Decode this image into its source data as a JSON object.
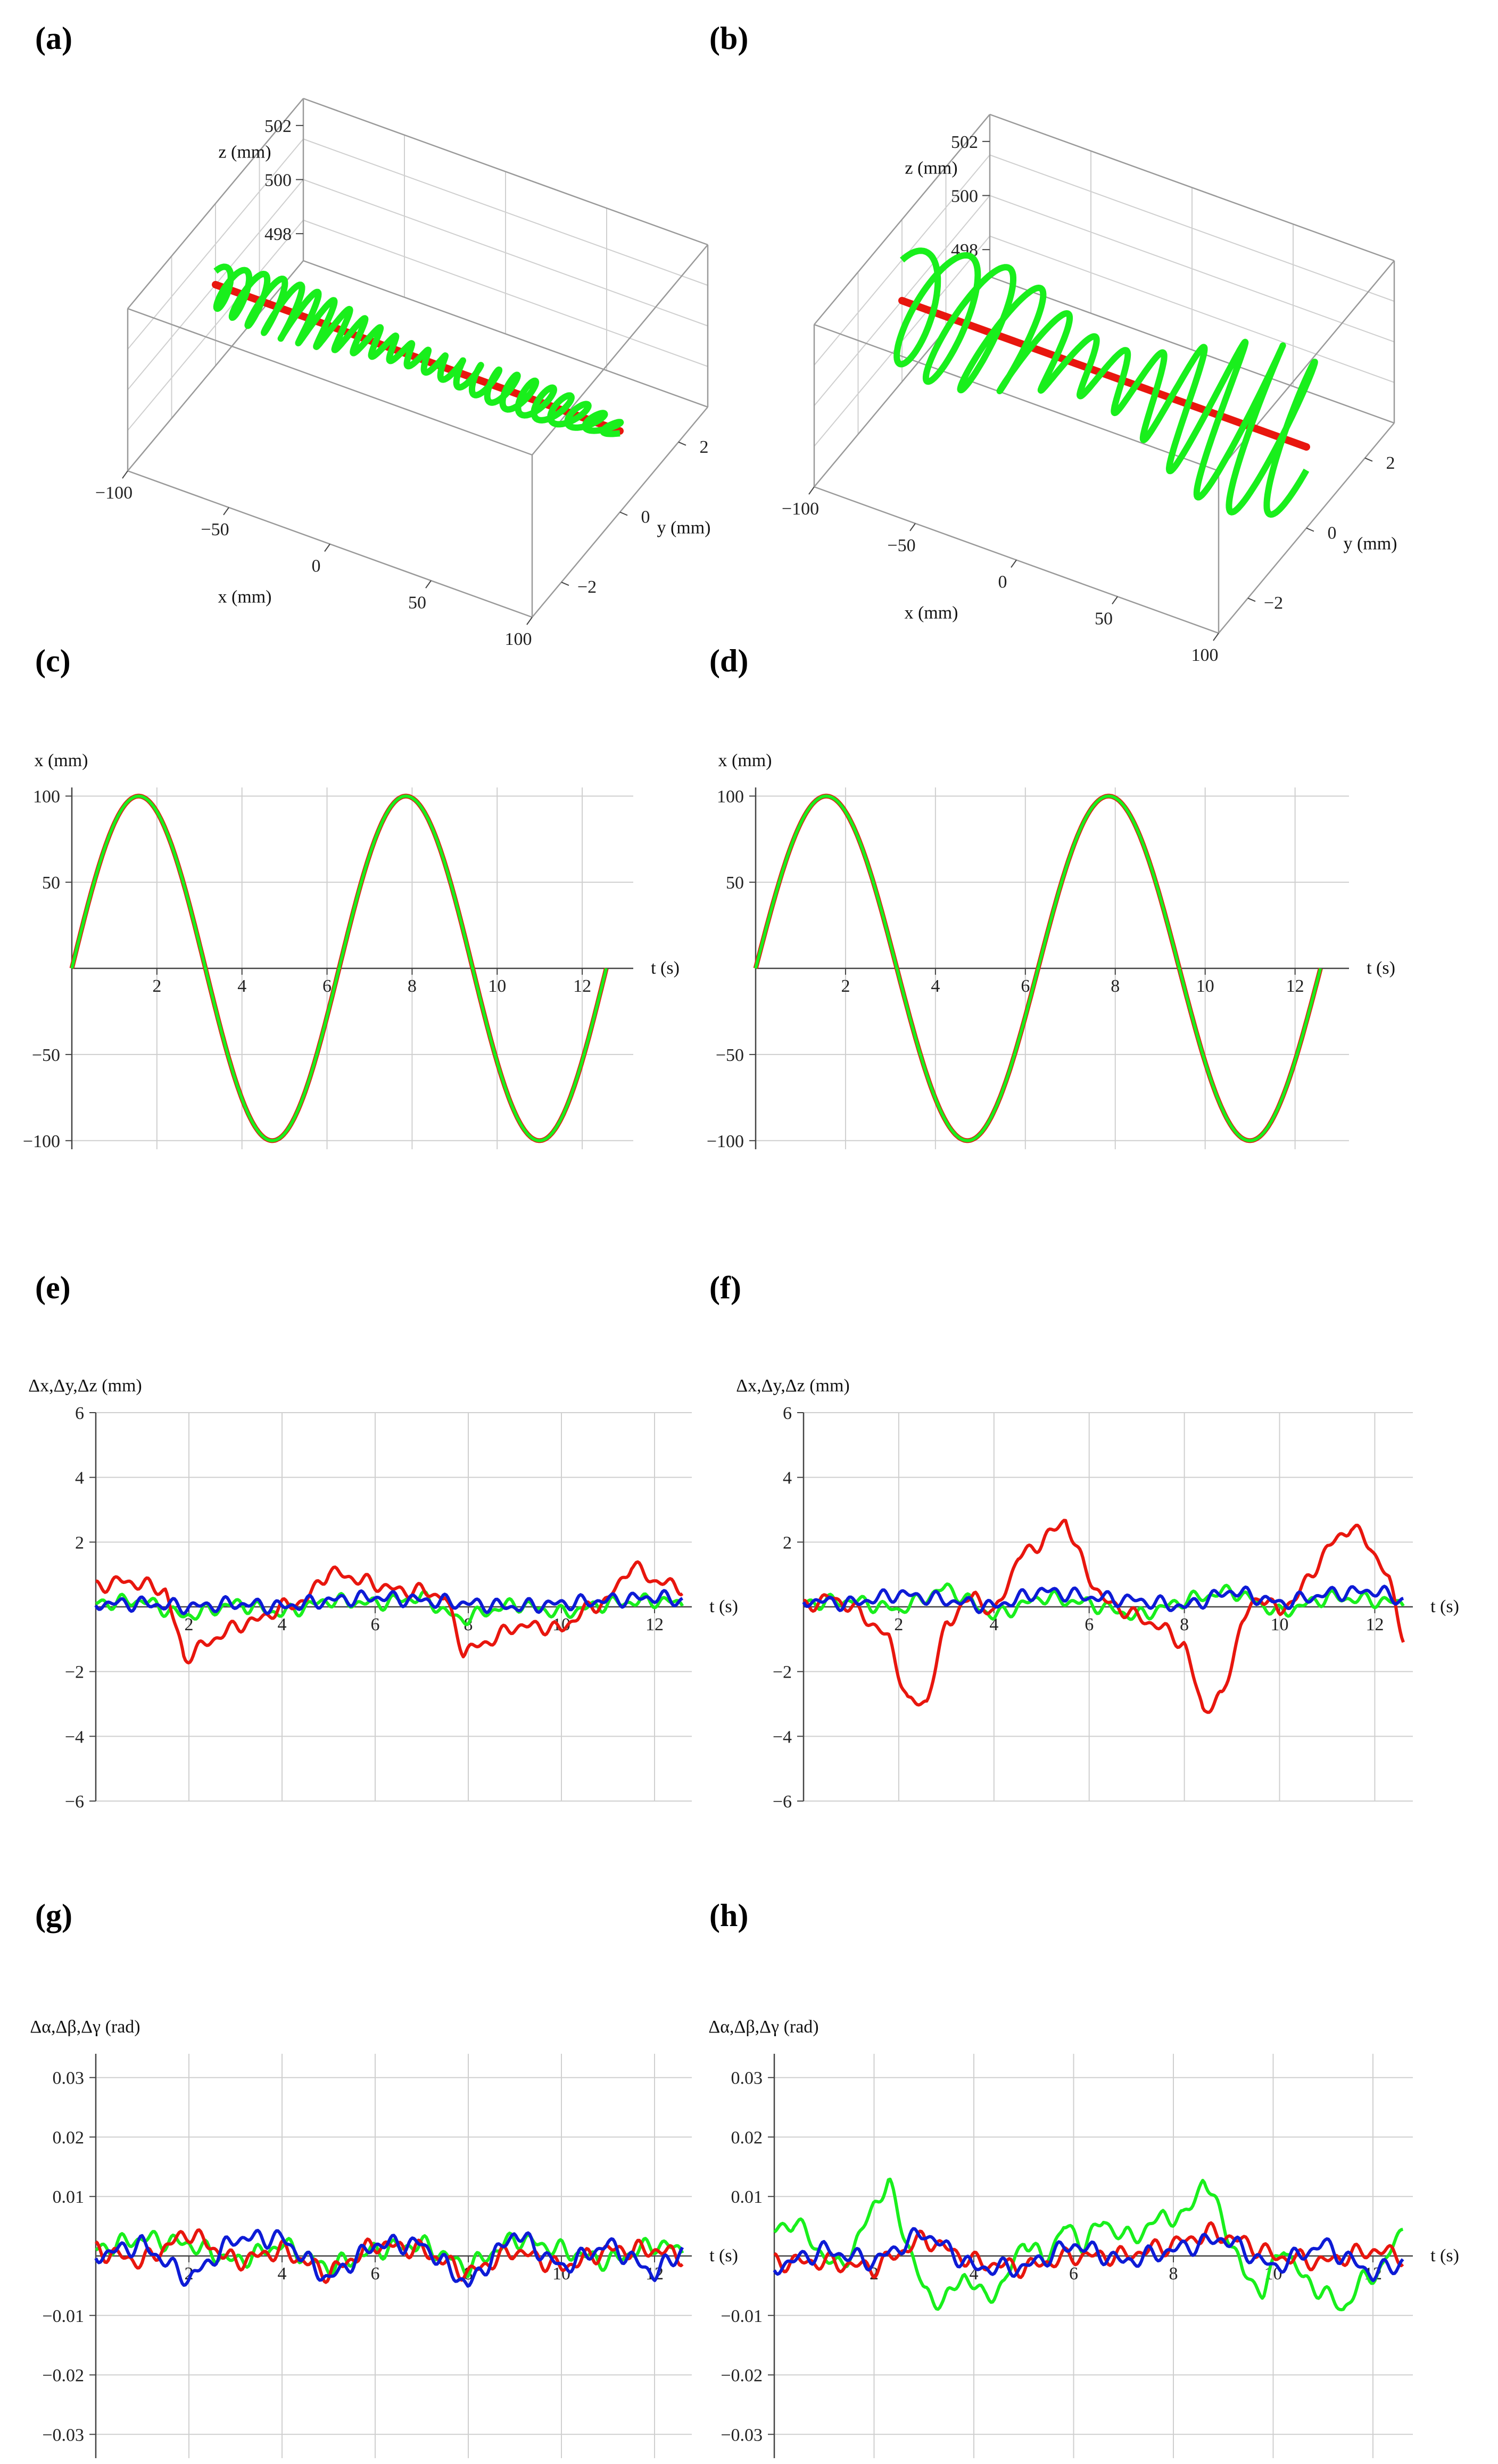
{
  "panels": [
    "(a)",
    "(b)",
    "(c)",
    "(d)",
    "(e)",
    "(f)",
    "(g)",
    "(h)"
  ],
  "colors": {
    "reference": "#e8160e",
    "actual": "#19ef1c",
    "third": "#0d1bd6",
    "grid": "#cfcfcf"
  },
  "chart_data": [
    {
      "id": "a",
      "type": "scatter",
      "mode": "3d",
      "xlabel": "x (mm)",
      "ylabel": "y (mm)",
      "zlabel": "z (mm)",
      "xticks": [
        -100,
        -50,
        0,
        50,
        100
      ],
      "yticks": [
        -2,
        0,
        2
      ],
      "zticks": [
        498,
        500,
        502
      ],
      "xlim": [
        -100,
        100
      ],
      "ylim": [
        -3,
        3
      ],
      "zlim": [
        497,
        503
      ],
      "series": [
        {
          "role": "reference",
          "color": "#e8160e",
          "points": [
            [
              -100,
              0,
              500
            ],
            [
              100,
              0,
              500
            ]
          ]
        },
        {
          "role": "actual",
          "color": "#19ef1c",
          "x_range": [
            -100,
            100
          ],
          "y_amplitude": 0.5,
          "z_amplitude": 0.5,
          "oscillations": 24
        }
      ]
    },
    {
      "id": "b",
      "type": "scatter",
      "mode": "3d",
      "xlabel": "x (mm)",
      "ylabel": "y (mm)",
      "zlabel": "z (mm)",
      "xticks": [
        -100,
        -50,
        0,
        50,
        100
      ],
      "yticks": [
        -2,
        0,
        2
      ],
      "zticks": [
        498,
        500,
        502
      ],
      "xlim": [
        -100,
        100
      ],
      "ylim": [
        -3,
        3
      ],
      "zlim": [
        497,
        503
      ],
      "series": [
        {
          "role": "reference",
          "color": "#e8160e",
          "points": [
            [
              -100,
              0,
              500
            ],
            [
              100,
              0,
              500
            ]
          ]
        },
        {
          "role": "actual",
          "color": "#19ef1c",
          "x_range": [
            -100,
            100
          ],
          "y_amplitude": 1.2,
          "z_amplitude": 1.5,
          "oscillations": 12
        }
      ]
    },
    {
      "id": "c",
      "type": "line",
      "xlabel": "t (s)",
      "ylabel": "x (mm)",
      "xlim": [
        0,
        13.2
      ],
      "ylim": [
        -105,
        105
      ],
      "xticks": [
        2,
        4,
        6,
        8,
        10,
        12
      ],
      "yticks": [
        -100,
        -50,
        50,
        100
      ],
      "series": [
        {
          "role": "reference",
          "color": "#e8160e",
          "function": "100*sin(t)",
          "t_range": [
            0,
            12.566
          ]
        },
        {
          "role": "actual",
          "color": "#19ef1c",
          "function": "100*sin(t)",
          "t_range": [
            0,
            12.566
          ]
        }
      ]
    },
    {
      "id": "d",
      "type": "line",
      "xlabel": "t (s)",
      "ylabel": "x (mm)",
      "xlim": [
        0,
        13.2
      ],
      "ylim": [
        -105,
        105
      ],
      "xticks": [
        2,
        4,
        6,
        8,
        10,
        12
      ],
      "yticks": [
        -100,
        -50,
        50,
        100
      ],
      "series": [
        {
          "role": "reference",
          "color": "#e8160e",
          "function": "100*sin(t)",
          "t_range": [
            0,
            12.566
          ]
        },
        {
          "role": "actual",
          "color": "#19ef1c",
          "function": "100*sin(t)",
          "t_range": [
            0,
            12.566
          ]
        }
      ]
    },
    {
      "id": "e",
      "type": "line",
      "xlabel": "t (s)",
      "ylabel": "Δx,Δy,Δz (mm)",
      "xlim": [
        0,
        12.8
      ],
      "ylim": [
        -6,
        6
      ],
      "xticks": [
        2,
        4,
        6,
        8,
        10,
        12
      ],
      "yticks": [
        -6,
        -4,
        -2,
        2,
        4,
        6
      ],
      "series": [
        {
          "name": "",
          "color": "#19ef1c",
          "x": [
            0,
            1,
            1.9,
            3,
            4,
            5,
            6,
            7,
            7.8,
            9,
            10,
            11,
            12,
            12.6
          ],
          "y": [
            0.1,
            0.2,
            -0.3,
            0.1,
            -0.2,
            0.2,
            0.1,
            0.3,
            -0.4,
            0.1,
            -0.2,
            0.1,
            0.2,
            0.1
          ]
        },
        {
          "name": "",
          "color": "#e8160e",
          "x": [
            0,
            0.5,
            1,
            1.5,
            1.9,
            2.3,
            3,
            3.5,
            4,
            4.5,
            5,
            5.5,
            6,
            6.5,
            7,
            7.5,
            7.9,
            8.4,
            9,
            9.5,
            10,
            10.5,
            11,
            11.5,
            12,
            12.6
          ],
          "y": [
            0.6,
            0.8,
            0.7,
            0.5,
            -1.6,
            -1.2,
            -0.6,
            -0.4,
            0,
            0.2,
            1.1,
            0.9,
            0.7,
            0.5,
            0.5,
            0.3,
            -1.4,
            -1.1,
            -0.6,
            -0.6,
            -0.7,
            -0.1,
            0.2,
            1.3,
            0.8,
            0.6
          ]
        },
        {
          "name": "",
          "color": "#0d1bd6",
          "x": [
            0,
            1,
            2,
            3,
            4,
            5,
            6,
            7,
            8,
            9,
            10,
            11,
            12,
            12.6
          ],
          "y": [
            0.1,
            0.1,
            0,
            0.1,
            0,
            0.2,
            0.3,
            0.2,
            0.1,
            0,
            0.1,
            0.2,
            0.3,
            0.2
          ]
        }
      ]
    },
    {
      "id": "f",
      "type": "line",
      "xlabel": "t (s)",
      "ylabel": "Δx,Δy,Δz (mm)",
      "xlim": [
        0,
        12.8
      ],
      "ylim": [
        -6,
        6
      ],
      "xticks": [
        2,
        4,
        6,
        8,
        10,
        12
      ],
      "yticks": [
        -6,
        -4,
        -2,
        2,
        4,
        6
      ],
      "series": [
        {
          "name": "",
          "color": "#19ef1c",
          "x": [
            0,
            1,
            2,
            3,
            4,
            5,
            6,
            7,
            8,
            9,
            10,
            11,
            12,
            12.6
          ],
          "y": [
            0.1,
            0.2,
            -0.1,
            0.6,
            -0.3,
            0.3,
            0.1,
            -0.3,
            0.2,
            0.5,
            -0.2,
            0.3,
            0.2,
            0.1
          ]
        },
        {
          "name": "",
          "color": "#e8160e",
          "x": [
            0,
            0.6,
            1.2,
            1.8,
            2.2,
            2.6,
            3,
            3.6,
            4,
            4.5,
            5,
            5.5,
            5.9,
            6.3,
            7,
            7.6,
            8,
            8.4,
            8.8,
            9.2,
            9.6,
            10,
            10.5,
            11,
            11.5,
            11.9,
            12.3,
            12.6
          ],
          "y": [
            0,
            0.3,
            -0.2,
            -1,
            -3,
            -2.9,
            -0.5,
            0.4,
            -0.3,
            1.5,
            2,
            2.7,
            1.2,
            0.2,
            -0.3,
            -0.7,
            -1.2,
            -3.2,
            -2.8,
            -0.5,
            0.4,
            -0.2,
            0.6,
            1.8,
            2.5,
            1.9,
            0.8,
            -0.9
          ]
        },
        {
          "name": "",
          "color": "#0d1bd6",
          "x": [
            0,
            1,
            2,
            3,
            4,
            5,
            6,
            7,
            8,
            9,
            10,
            11,
            12,
            12.6
          ],
          "y": [
            0.2,
            0.1,
            0.4,
            0.2,
            0,
            0.5,
            0.3,
            0.2,
            0,
            0.5,
            0.1,
            0.4,
            0.5,
            0.2
          ]
        }
      ]
    },
    {
      "id": "g",
      "type": "line",
      "xlabel": "t (s)",
      "ylabel": "Δα,Δβ,Δγ (rad)",
      "xlim": [
        0,
        12.8
      ],
      "ylim": [
        -0.034,
        0.034
      ],
      "xticks": [
        2,
        4,
        6,
        8,
        10,
        12
      ],
      "yticks": [
        -0.03,
        -0.02,
        -0.01,
        0.01,
        0.02,
        0.03
      ],
      "series": [
        {
          "name": "",
          "color": "#19ef1c",
          "x": [
            0,
            1,
            2,
            3,
            4,
            5,
            6,
            7,
            8,
            9,
            10,
            11,
            12,
            12.6
          ],
          "y": [
            0.001,
            0.003,
            0.002,
            -0.001,
            0.002,
            -0.002,
            0.001,
            0.002,
            -0.002,
            0.003,
            0.001,
            -0.001,
            0.002,
            0.001
          ]
        },
        {
          "name": "",
          "color": "#e8160e",
          "x": [
            0,
            1,
            2,
            3,
            4,
            5,
            6,
            7,
            8,
            9,
            10,
            11,
            12,
            12.6
          ],
          "y": [
            0.001,
            -0.001,
            0.004,
            -0.001,
            0.001,
            -0.003,
            0.002,
            0.001,
            -0.003,
            0.001,
            -0.002,
            0.001,
            0.001,
            0
          ]
        },
        {
          "name": "",
          "color": "#0d1bd6",
          "x": [
            0,
            1,
            2,
            3,
            4,
            5,
            6,
            7,
            8,
            9,
            10,
            11,
            12,
            12.6
          ],
          "y": [
            0,
            0.002,
            -0.004,
            0.003,
            0.003,
            -0.004,
            0.002,
            0.002,
            -0.005,
            0.004,
            -0.002,
            0.002,
            -0.003,
            0.001
          ]
        }
      ]
    },
    {
      "id": "h",
      "type": "line",
      "xlabel": "t (s)",
      "ylabel": "Δα,Δβ,Δγ (rad)",
      "xlim": [
        0,
        12.8
      ],
      "ylim": [
        -0.034,
        0.034
      ],
      "xticks": [
        2,
        4,
        6,
        8,
        10,
        12
      ],
      "yticks": [
        -0.03,
        -0.02,
        -0.01,
        0.01,
        0.02,
        0.03
      ],
      "series": [
        {
          "name": "",
          "color": "#19ef1c",
          "x": [
            0,
            0.4,
            0.8,
            1.2,
            1.6,
            2,
            2.3,
            2.6,
            3,
            3.4,
            3.8,
            4.2,
            4.6,
            5,
            5.4,
            5.8,
            6.2,
            6.6,
            7,
            7.4,
            7.8,
            8.2,
            8.6,
            9,
            9.4,
            9.8,
            10.2,
            10.6,
            11,
            11.4,
            11.8,
            12.2,
            12.6
          ],
          "y": [
            0.004,
            0.006,
            0.002,
            -0.002,
            0.001,
            0.009,
            0.012,
            0.004,
            -0.006,
            -0.008,
            -0.003,
            -0.007,
            -0.005,
            0.003,
            -0.001,
            0.005,
            0.002,
            0.006,
            0.003,
            0.004,
            0.007,
            0.006,
            0.013,
            0.006,
            -0.003,
            -0.006,
            0.002,
            -0.004,
            -0.006,
            -0.009,
            -0.004,
            -0.002,
            0.005
          ]
        },
        {
          "name": "",
          "color": "#e8160e",
          "x": [
            0,
            1,
            2,
            3,
            4,
            5,
            6,
            7,
            8,
            8.8,
            9.5,
            10,
            11,
            12,
            12.6
          ],
          "y": [
            -0.001,
            -0.001,
            -0.002,
            0.003,
            -0.001,
            -0.002,
            0,
            0,
            0.002,
            0.004,
            0.002,
            0,
            -0.001,
            0.001,
            0
          ]
        },
        {
          "name": "",
          "color": "#0d1bd6",
          "x": [
            0,
            1,
            2,
            3,
            4,
            5,
            6,
            7,
            8,
            9,
            10,
            11,
            12,
            12.6
          ],
          "y": [
            -0.002,
            0.001,
            -0.001,
            0.004,
            -0.002,
            -0.002,
            0.002,
            -0.001,
            0.001,
            0.003,
            -0.002,
            0.002,
            -0.003,
            -0.001
          ]
        }
      ]
    }
  ]
}
